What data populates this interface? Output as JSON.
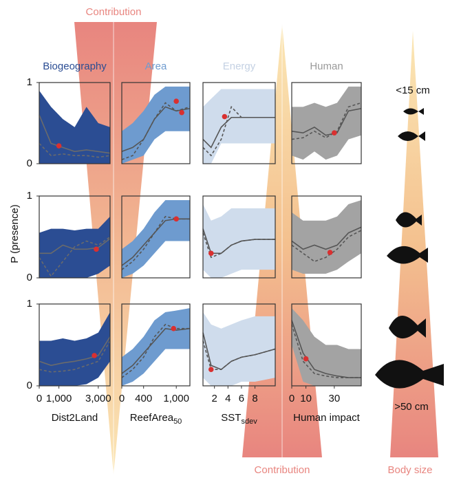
{
  "annotations": {
    "contribution_top": "Contribution",
    "contribution_bottom": "Contribution",
    "body_size": "Body size",
    "small": "<15 cm",
    "large": ">50 cm",
    "ylabel": "P (presence)"
  },
  "chart_data": [
    {
      "type": "line",
      "title": "Biogeography",
      "title_color": "#2b4d93",
      "band_color": "#2b4d93",
      "line_color": "#6b6b6b",
      "point_color": "#d93030",
      "x": [
        0,
        600,
        1200,
        1800,
        2400,
        3000,
        3600
      ],
      "xlim": [
        0,
        3600
      ],
      "ylim": [
        0,
        1
      ],
      "yticks": [
        0,
        1
      ],
      "series": [
        {
          "values": [
            0.6,
            0.25,
            0.2,
            0.15,
            0.17,
            0.15,
            0.13
          ],
          "dash": false
        },
        {
          "values": [
            0.25,
            0.1,
            0.12,
            0.1,
            0.1,
            0.08,
            0.1
          ],
          "dash": true
        }
      ],
      "band": {
        "upper": [
          0.9,
          0.7,
          0.55,
          0.45,
          0.7,
          0.5,
          0.45
        ],
        "lower": [
          0,
          0,
          0,
          0,
          0,
          0,
          0
        ]
      },
      "points": [
        {
          "x": 1000,
          "y": 0.22
        }
      ]
    },
    {
      "type": "line",
      "title": "Area",
      "title_color": "#6e9bcf",
      "band_color": "#6e9bcf",
      "line_color": "#555",
      "point_color": "#d93030",
      "x": [
        0,
        200,
        400,
        600,
        800,
        1000,
        1250
      ],
      "xlim": [
        0,
        1250
      ],
      "ylim": [
        0,
        1
      ],
      "series": [
        {
          "values": [
            0.15,
            0.2,
            0.3,
            0.55,
            0.7,
            0.65,
            0.68
          ],
          "dash": false
        },
        {
          "values": [
            0.05,
            0.1,
            0.3,
            0.55,
            0.75,
            0.65,
            0.7
          ],
          "dash": true
        }
      ],
      "band": {
        "upper": [
          0.4,
          0.5,
          0.65,
          0.85,
          0.95,
          0.95,
          0.95
        ],
        "lower": [
          0,
          0.05,
          0.1,
          0.3,
          0.4,
          0.4,
          0.4
        ]
      },
      "points": [
        {
          "x": 1000,
          "y": 0.77
        },
        {
          "x": 1100,
          "y": 0.63
        }
      ]
    },
    {
      "type": "line",
      "title": "Energy",
      "title_color": "#c4d1e3",
      "band_color": "#cfdcec",
      "line_color": "#555",
      "point_color": "#d93030",
      "x": [
        0.3,
        1.5,
        3,
        4.5,
        6,
        8,
        11
      ],
      "xlim": [
        0.3,
        11
      ],
      "ylim": [
        0,
        1
      ],
      "series": [
        {
          "values": [
            0.3,
            0.2,
            0.45,
            0.57,
            0.57,
            0.57,
            0.57
          ],
          "dash": false
        },
        {
          "values": [
            0.2,
            0.1,
            0.3,
            0.7,
            0.57,
            0.57,
            0.57
          ],
          "dash": true
        }
      ],
      "band": {
        "upper": [
          0.7,
          0.8,
          0.92,
          0.92,
          0.92,
          0.92,
          0.92
        ],
        "lower": [
          0,
          0,
          0.25,
          0.25,
          0.25,
          0.25,
          0.25
        ]
      },
      "points": [
        {
          "x": 3.5,
          "y": 0.58
        }
      ]
    },
    {
      "type": "line",
      "title": "Human",
      "title_color": "#9a9a9a",
      "band_color": "#a3a3a3",
      "line_color": "#555",
      "point_color": "#d93030",
      "x": [
        0,
        8,
        16,
        24,
        32,
        40,
        49
      ],
      "xlim": [
        0,
        49
      ],
      "ylim": [
        0,
        1
      ],
      "series": [
        {
          "values": [
            0.4,
            0.38,
            0.45,
            0.35,
            0.38,
            0.65,
            0.68
          ],
          "dash": false
        },
        {
          "values": [
            0.3,
            0.32,
            0.4,
            0.32,
            0.4,
            0.7,
            0.75
          ],
          "dash": true
        }
      ],
      "band": {
        "upper": [
          0.7,
          0.7,
          0.75,
          0.7,
          0.75,
          0.95,
          0.95
        ],
        "lower": [
          0.1,
          0.05,
          0.15,
          0.05,
          0.1,
          0.3,
          0.35
        ]
      },
      "points": [
        {
          "x": 30,
          "y": 0.38
        }
      ]
    },
    {
      "type": "line",
      "band_color": "#2b4d93",
      "line_color": "#6b6b6b",
      "point_color": "#d93030",
      "x": [
        0,
        600,
        1200,
        1800,
        2400,
        3000,
        3600
      ],
      "xlim": [
        0,
        3600
      ],
      "ylim": [
        0,
        1
      ],
      "yticks": [
        0,
        1
      ],
      "series": [
        {
          "values": [
            0.3,
            0.3,
            0.4,
            0.35,
            0.35,
            0.37,
            0.48
          ],
          "dash": false
        },
        {
          "values": [
            0.25,
            0.02,
            0.2,
            0.38,
            0.45,
            0.4,
            0.5
          ],
          "dash": true
        }
      ],
      "band": {
        "upper": [
          0.55,
          0.6,
          0.6,
          0.58,
          0.6,
          0.6,
          0.75
        ],
        "lower": [
          0,
          0,
          0,
          0,
          0,
          0.05,
          0.15
        ]
      },
      "points": [
        {
          "x": 2900,
          "y": 0.35
        }
      ]
    },
    {
      "type": "line",
      "band_color": "#6e9bcf",
      "line_color": "#555",
      "point_color": "#d93030",
      "x": [
        0,
        200,
        400,
        600,
        800,
        1000,
        1250
      ],
      "xlim": [
        0,
        1250
      ],
      "ylim": [
        0,
        1
      ],
      "series": [
        {
          "values": [
            0.15,
            0.25,
            0.4,
            0.55,
            0.7,
            0.72,
            0.72
          ],
          "dash": false
        },
        {
          "values": [
            0.1,
            0.2,
            0.35,
            0.55,
            0.75,
            0.72,
            0.72
          ],
          "dash": true
        }
      ],
      "band": {
        "upper": [
          0.35,
          0.45,
          0.6,
          0.8,
          0.95,
          0.95,
          0.95
        ],
        "lower": [
          0,
          0.05,
          0.15,
          0.3,
          0.45,
          0.45,
          0.45
        ]
      },
      "points": [
        {
          "x": 1000,
          "y": 0.72
        }
      ]
    },
    {
      "type": "line",
      "band_color": "#cfdcec",
      "line_color": "#555",
      "point_color": "#d93030",
      "x": [
        0.3,
        1.5,
        3,
        4.5,
        6,
        8,
        11
      ],
      "xlim": [
        0.3,
        11
      ],
      "ylim": [
        0,
        1
      ],
      "series": [
        {
          "values": [
            0.6,
            0.3,
            0.3,
            0.4,
            0.45,
            0.47,
            0.47
          ],
          "dash": false
        },
        {
          "values": [
            0.55,
            0.25,
            0.3,
            0.4,
            0.45,
            0.47,
            0.47
          ],
          "dash": true
        }
      ],
      "band": {
        "upper": [
          0.9,
          0.7,
          0.75,
          0.85,
          0.85,
          0.85,
          0.85
        ],
        "lower": [
          0.1,
          0,
          0,
          0.05,
          0.1,
          0.1,
          0.1
        ]
      },
      "points": [
        {
          "x": 1.5,
          "y": 0.3
        }
      ]
    },
    {
      "type": "line",
      "band_color": "#a3a3a3",
      "line_color": "#555",
      "point_color": "#d93030",
      "x": [
        0,
        8,
        16,
        24,
        32,
        40,
        49
      ],
      "xlim": [
        0,
        49
      ],
      "ylim": [
        0,
        1
      ],
      "series": [
        {
          "values": [
            0.45,
            0.35,
            0.4,
            0.35,
            0.4,
            0.55,
            0.62
          ],
          "dash": false
        },
        {
          "values": [
            0.4,
            0.3,
            0.2,
            0.25,
            0.35,
            0.5,
            0.58
          ],
          "dash": true
        }
      ],
      "band": {
        "upper": [
          0.8,
          0.7,
          0.7,
          0.7,
          0.75,
          0.9,
          0.95
        ],
        "lower": [
          0.1,
          0.05,
          0.05,
          0.05,
          0.1,
          0.2,
          0.3
        ]
      },
      "points": [
        {
          "x": 27,
          "y": 0.31
        }
      ]
    },
    {
      "type": "line",
      "band_color": "#2b4d93",
      "line_color": "#6b6b6b",
      "point_color": "#d93030",
      "x": [
        0,
        600,
        1200,
        1800,
        2400,
        3000,
        3600
      ],
      "xlim": [
        0,
        3600
      ],
      "ylim": [
        0,
        1
      ],
      "yticks": [
        0,
        1
      ],
      "xticks": [
        0,
        {
          "value": 1000,
          "label": "1,000"
        },
        {
          "value": 3000,
          "label": "3,000"
        }
      ],
      "xlabel": "Dist2Land",
      "series": [
        {
          "values": [
            0.3,
            0.25,
            0.28,
            0.3,
            0.33,
            0.37,
            0.6
          ],
          "dash": false
        },
        {
          "values": [
            0.2,
            0.17,
            0.18,
            0.2,
            0.25,
            0.3,
            0.55
          ],
          "dash": true
        }
      ],
      "band": {
        "upper": [
          0.55,
          0.55,
          0.58,
          0.55,
          0.58,
          0.65,
          0.9
        ],
        "lower": [
          0,
          0,
          0,
          0,
          0.02,
          0.1,
          0.3
        ]
      },
      "points": [
        {
          "x": 2800,
          "y": 0.37
        }
      ]
    },
    {
      "type": "line",
      "band_color": "#6e9bcf",
      "line_color": "#555",
      "point_color": "#d93030",
      "x": [
        0,
        200,
        400,
        600,
        800,
        1000,
        1250
      ],
      "xlim": [
        0,
        1250
      ],
      "ylim": [
        0,
        1
      ],
      "xticks": [
        0,
        400,
        {
          "value": 1000,
          "label": "1,000"
        }
      ],
      "xlabel": "ReefArea",
      "xlabel_sub": "50",
      "series": [
        {
          "values": [
            0.15,
            0.25,
            0.4,
            0.55,
            0.7,
            0.68,
            0.7
          ],
          "dash": false
        },
        {
          "values": [
            0.1,
            0.2,
            0.35,
            0.6,
            0.75,
            0.7,
            0.7
          ],
          "dash": true
        }
      ],
      "band": {
        "upper": [
          0.35,
          0.45,
          0.6,
          0.8,
          0.9,
          0.92,
          0.95
        ],
        "lower": [
          0,
          0.05,
          0.15,
          0.3,
          0.45,
          0.45,
          0.45
        ]
      },
      "points": [
        {
          "x": 950,
          "y": 0.7
        }
      ]
    },
    {
      "type": "line",
      "band_color": "#cfdcec",
      "line_color": "#555",
      "point_color": "#d93030",
      "x": [
        0.3,
        1.5,
        3,
        4.5,
        6,
        8,
        11
      ],
      "xlim": [
        0.3,
        11
      ],
      "ylim": [
        0,
        1
      ],
      "xticks": [
        2,
        4,
        6,
        8
      ],
      "xlabel": "SST",
      "xlabel_sub": "sdev",
      "series": [
        {
          "values": [
            0.65,
            0.25,
            0.2,
            0.3,
            0.35,
            0.38,
            0.45
          ],
          "dash": false
        },
        {
          "values": [
            0.55,
            0.2,
            0.2,
            0.3,
            0.35,
            0.38,
            0.45
          ],
          "dash": true
        }
      ],
      "band": {
        "upper": [
          0.9,
          0.75,
          0.7,
          0.75,
          0.8,
          0.85,
          0.85
        ],
        "lower": [
          0.1,
          0,
          0,
          0,
          0.05,
          0.05,
          0.1
        ]
      },
      "points": [
        {
          "x": 1.5,
          "y": 0.2
        }
      ]
    },
    {
      "type": "line",
      "band_color": "#a3a3a3",
      "line_color": "#555",
      "point_color": "#d93030",
      "x": [
        0,
        8,
        16,
        24,
        32,
        40,
        49
      ],
      "xlim": [
        0,
        49
      ],
      "ylim": [
        0,
        1
      ],
      "xticks": [
        0,
        10,
        30
      ],
      "xlabel": "Human impact",
      "series": [
        {
          "values": [
            0.8,
            0.4,
            0.2,
            0.15,
            0.12,
            0.1,
            0.1
          ],
          "dash": false
        },
        {
          "values": [
            0.75,
            0.3,
            0.15,
            0.12,
            0.1,
            0.1,
            0.1
          ],
          "dash": true
        }
      ],
      "band": {
        "upper": [
          0.95,
          0.8,
          0.6,
          0.5,
          0.5,
          0.45,
          0.45
        ],
        "lower": [
          0.5,
          0.05,
          0,
          0,
          0,
          0,
          0
        ]
      },
      "points": [
        {
          "x": 10,
          "y": 0.33
        }
      ]
    }
  ]
}
